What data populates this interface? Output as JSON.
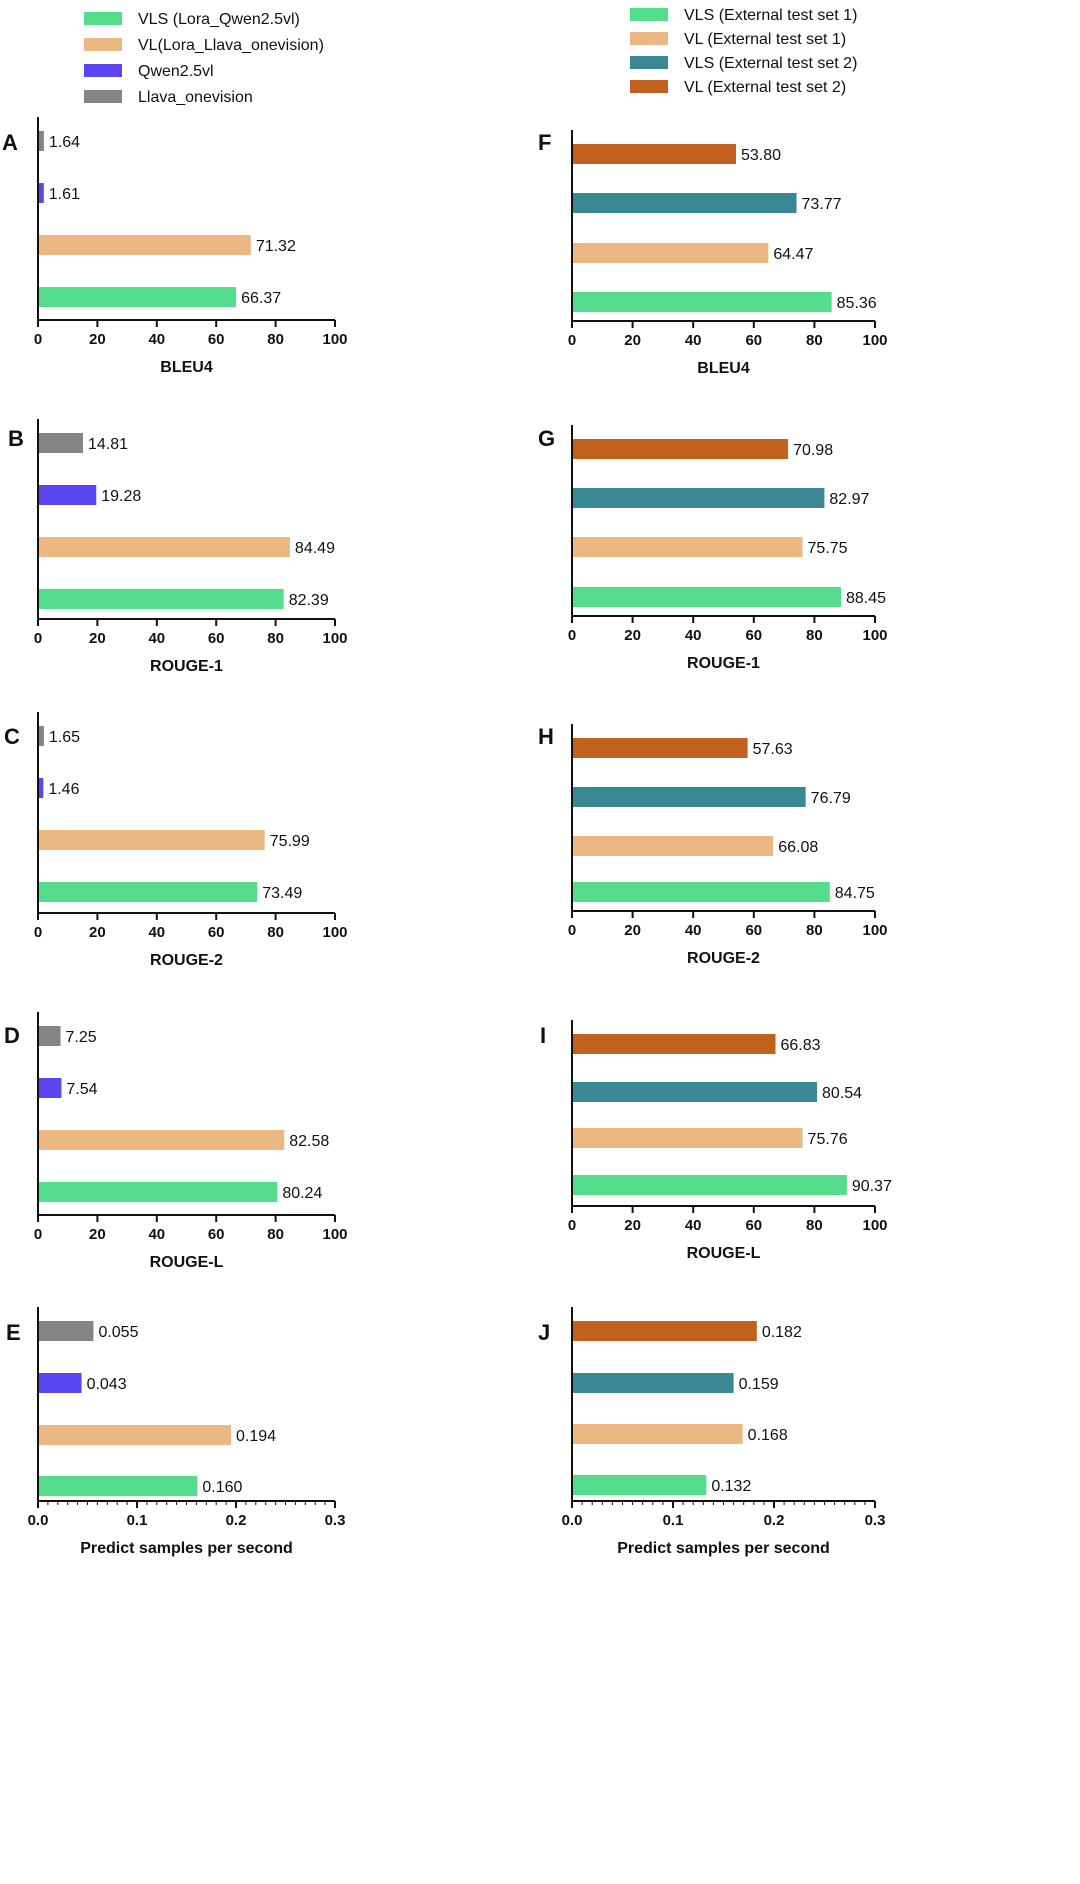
{
  "legend_left": [
    {
      "label": "VLS (Lora_Qwen2.5vl)",
      "color": "#55dd8c"
    },
    {
      "label": "VL(Lora_Llava_onevision)",
      "color": "#ebb884"
    },
    {
      "label": "Qwen2.5vl",
      "color": "#5b47f2"
    },
    {
      "label": "Llava_onevision",
      "color": "#858585"
    }
  ],
  "legend_right": [
    {
      "label": "VLS (External test set 1)",
      "color": "#55dd8c"
    },
    {
      "label": "VL (External test set 1)",
      "color": "#ebb884"
    },
    {
      "label": "VLS (External test set 2)",
      "color": "#3a8893"
    },
    {
      "label": "VL (External test set 2)",
      "color": "#c2601e"
    }
  ],
  "chart_data": [
    {
      "type": "bar",
      "panel": "A",
      "xlabel": "BLEU4",
      "xlim": [
        0,
        100
      ],
      "ticks": [
        "0",
        "20",
        "40",
        "60",
        "80",
        "100"
      ],
      "categories": [
        "Llava_onevision",
        "Qwen2.5vl",
        "VL(Lora_Llava_onevision)",
        "VLS (Lora_Qwen2.5vl)"
      ],
      "values": [
        1.64,
        1.61,
        71.32,
        66.37
      ],
      "labels": [
        "1.64",
        "1.61",
        "71.32",
        "66.37"
      ]
    },
    {
      "type": "bar",
      "panel": "B",
      "xlabel": "ROUGE-1",
      "xlim": [
        0,
        100
      ],
      "ticks": [
        "0",
        "20",
        "40",
        "60",
        "80",
        "100"
      ],
      "categories": [
        "Llava_onevision",
        "Qwen2.5vl",
        "VL(Lora_Llava_onevision)",
        "VLS (Lora_Qwen2.5vl)"
      ],
      "values": [
        14.81,
        19.28,
        84.49,
        82.39
      ],
      "labels": [
        "14.81",
        "19.28",
        "84.49",
        "82.39"
      ]
    },
    {
      "type": "bar",
      "panel": "C",
      "xlabel": "ROUGE-2",
      "xlim": [
        0,
        100
      ],
      "ticks": [
        "0",
        "20",
        "40",
        "60",
        "80",
        "100"
      ],
      "categories": [
        "Llava_onevision",
        "Qwen2.5vl",
        "VL(Lora_Llava_onevision)",
        "VLS (Lora_Qwen2.5vl)"
      ],
      "values": [
        1.65,
        1.46,
        75.99,
        73.49
      ],
      "labels": [
        "1.65",
        "1.46",
        "75.99",
        "73.49"
      ]
    },
    {
      "type": "bar",
      "panel": "D",
      "xlabel": "ROUGE-L",
      "xlim": [
        0,
        100
      ],
      "ticks": [
        "0",
        "20",
        "40",
        "60",
        "80",
        "100"
      ],
      "categories": [
        "Llava_onevision",
        "Qwen2.5vl",
        "VL(Lora_Llava_onevision)",
        "VLS (Lora_Qwen2.5vl)"
      ],
      "values": [
        7.25,
        7.54,
        82.58,
        80.24
      ],
      "labels": [
        "7.25",
        "7.54",
        "82.58",
        "80.24"
      ]
    },
    {
      "type": "bar",
      "panel": "E",
      "xlabel": "Predict samples per second",
      "xlim": [
        0,
        0.3
      ],
      "ticks": [
        "0.0",
        "0.1",
        "0.2",
        "0.3"
      ],
      "categories": [
        "Llava_onevision",
        "Qwen2.5vl",
        "VL(Lora_Llava_onevision)",
        "VLS (Lora_Qwen2.5vl)"
      ],
      "values": [
        0.055,
        0.043,
        0.194,
        0.16
      ],
      "labels": [
        "0.055",
        "0.043",
        "0.194",
        "0.160"
      ]
    },
    {
      "type": "bar",
      "panel": "F",
      "xlabel": "BLEU4",
      "xlim": [
        0,
        100
      ],
      "ticks": [
        "0",
        "20",
        "40",
        "60",
        "80",
        "100"
      ],
      "categories": [
        "VL (External test set 2)",
        "VLS (External test set 2)",
        "VL (External test set 1)",
        "VLS (External test set 1)"
      ],
      "values": [
        53.8,
        73.77,
        64.47,
        85.36
      ],
      "labels": [
        "53.80",
        "73.77",
        "64.47",
        "85.36"
      ]
    },
    {
      "type": "bar",
      "panel": "G",
      "xlabel": "ROUGE-1",
      "xlim": [
        0,
        100
      ],
      "ticks": [
        "0",
        "20",
        "40",
        "60",
        "80",
        "100"
      ],
      "categories": [
        "VL (External test set 2)",
        "VLS (External test set 2)",
        "VL (External test set 1)",
        "VLS (External test set 1)"
      ],
      "values": [
        70.98,
        82.97,
        75.75,
        88.45
      ],
      "labels": [
        "70.98",
        "82.97",
        "75.75",
        "88.45"
      ]
    },
    {
      "type": "bar",
      "panel": "H",
      "xlabel": "ROUGE-2",
      "xlim": [
        0,
        100
      ],
      "ticks": [
        "0",
        "20",
        "40",
        "60",
        "80",
        "100"
      ],
      "categories": [
        "VL (External test set 2)",
        "VLS (External test set 2)",
        "VL (External test set 1)",
        "VLS (External test set 1)"
      ],
      "values": [
        57.63,
        76.79,
        66.08,
        84.75
      ],
      "labels": [
        "57.63",
        "76.79",
        "66.08",
        "84.75"
      ]
    },
    {
      "type": "bar",
      "panel": "I",
      "xlabel": "ROUGE-L",
      "xlim": [
        0,
        100
      ],
      "ticks": [
        "0",
        "20",
        "40",
        "60",
        "80",
        "100"
      ],
      "categories": [
        "VL (External test set 2)",
        "VLS (External test set 2)",
        "VL (External test set 1)",
        "VLS (External test set 1)"
      ],
      "values": [
        66.83,
        80.54,
        75.76,
        90.37
      ],
      "labels": [
        "66.83",
        "80.54",
        "75.76",
        "90.37"
      ]
    },
    {
      "type": "bar",
      "panel": "J",
      "xlabel": "Predict samples per second",
      "xlim": [
        0,
        0.3
      ],
      "ticks": [
        "0.0",
        "0.1",
        "0.2",
        "0.3"
      ],
      "categories": [
        "VL (External test set 2)",
        "VLS (External test set 2)",
        "VL (External test set 1)",
        "VLS (External test set 1)"
      ],
      "values": [
        0.182,
        0.159,
        0.168,
        0.132
      ],
      "labels": [
        "0.182",
        "0.159",
        "0.168",
        "0.132"
      ]
    }
  ]
}
